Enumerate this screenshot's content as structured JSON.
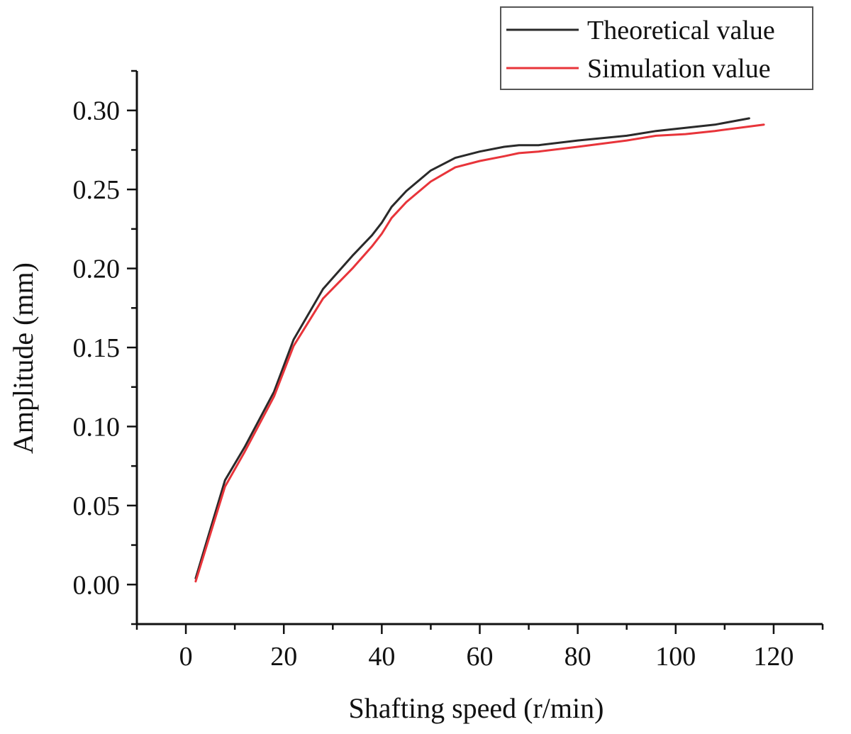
{
  "chart_data": {
    "type": "line",
    "title": "",
    "xlabel": "Shafting speed (r/min)",
    "ylabel": "Amplitude (mm)",
    "xlim": [
      -10,
      130
    ],
    "ylim": [
      -0.025,
      0.325
    ],
    "xticks": [
      0,
      20,
      40,
      60,
      80,
      100,
      120
    ],
    "xtick_labels": [
      "0",
      "20",
      "40",
      "60",
      "80",
      "100",
      "120"
    ],
    "yticks": [
      0.0,
      0.05,
      0.1,
      0.15,
      0.2,
      0.25,
      0.3
    ],
    "ytick_labels": [
      "0.00",
      "0.05",
      "0.10",
      "0.15",
      "0.20",
      "0.25",
      "0.30"
    ],
    "grid": false,
    "legend_position": "top-right",
    "series": [
      {
        "name": "Theoretical value",
        "color": "#2a2a2a",
        "x": [
          2,
          8,
          12,
          18,
          22,
          28,
          34,
          38,
          40,
          42,
          45,
          50,
          55,
          60,
          65,
          68,
          72,
          80,
          90,
          96,
          102,
          108,
          115
        ],
        "y": [
          0.004,
          0.066,
          0.087,
          0.122,
          0.155,
          0.187,
          0.208,
          0.221,
          0.229,
          0.239,
          0.249,
          0.262,
          0.27,
          0.274,
          0.277,
          0.278,
          0.278,
          0.281,
          0.284,
          0.287,
          0.289,
          0.291,
          0.295
        ]
      },
      {
        "name": "Simulation value",
        "color": "#e8343a",
        "x": [
          2,
          8,
          12,
          18,
          22,
          28,
          34,
          38,
          40,
          42,
          45,
          50,
          55,
          60,
          65,
          68,
          72,
          80,
          90,
          96,
          102,
          108,
          118
        ],
        "y": [
          0.002,
          0.062,
          0.084,
          0.119,
          0.151,
          0.181,
          0.2,
          0.214,
          0.222,
          0.232,
          0.242,
          0.255,
          0.264,
          0.268,
          0.271,
          0.273,
          0.274,
          0.277,
          0.281,
          0.284,
          0.285,
          0.287,
          0.291
        ]
      }
    ]
  }
}
